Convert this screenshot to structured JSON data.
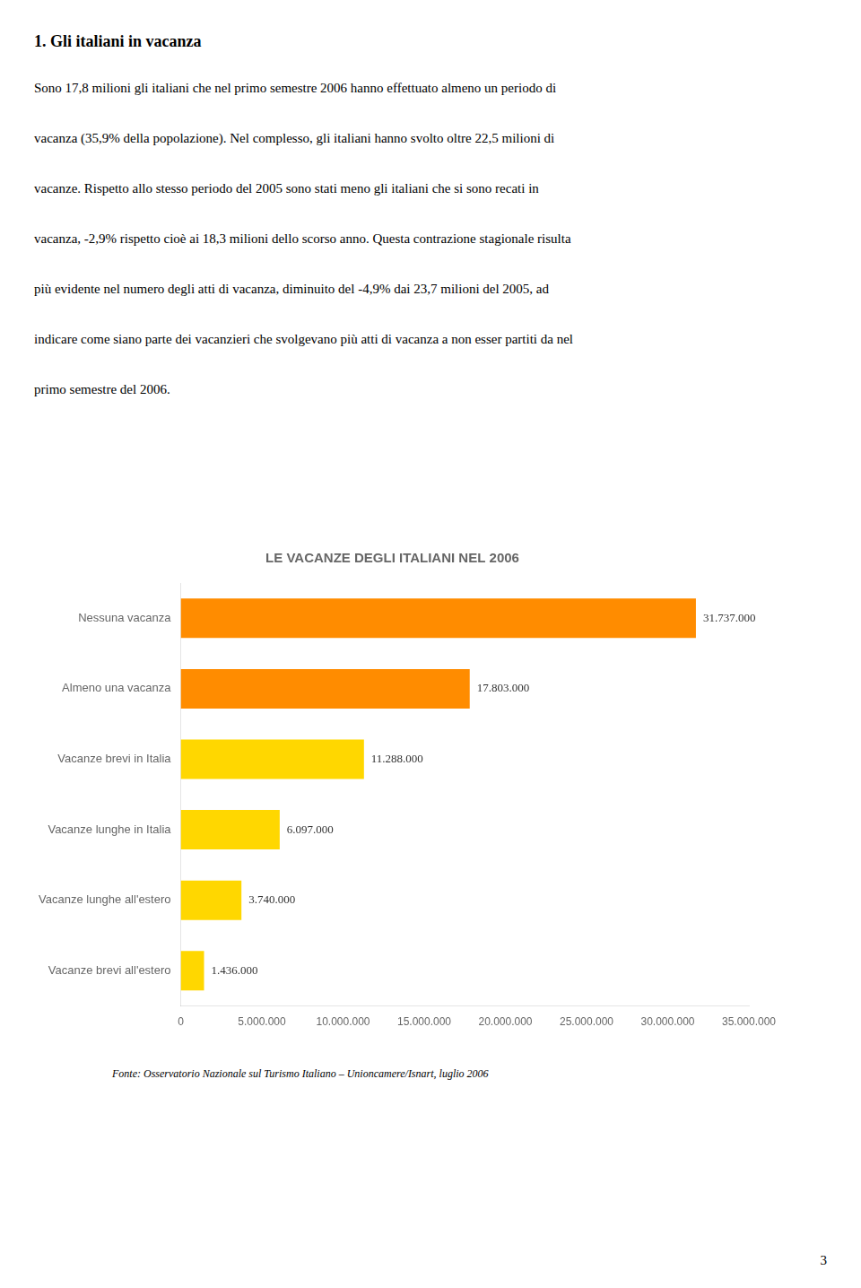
{
  "heading": "1. Gli italiani in vacanza",
  "paragraphs": [
    "Sono 17,8 milioni gli italiani che nel primo semestre 2006 hanno effettuato almeno un periodo di",
    "vacanza (35,9% della popolazione). Nel complesso, gli italiani hanno svolto oltre 22,5 milioni di",
    "vacanze. Rispetto allo stesso periodo del 2005 sono stati meno gli italiani che si sono recati in",
    "vacanza, -2,9% rispetto cioè ai 18,3 milioni dello scorso anno. Questa contrazione stagionale risulta",
    "più evidente nel numero degli atti di vacanza, diminuito del -4,9% dai 23,7 milioni del 2005, ad",
    "indicare come siano parte dei vacanzieri che svolgevano più atti di vacanza a non esser partiti da nel",
    "primo semestre del 2006."
  ],
  "footnote": "Fonte: Osservatorio Nazionale sul Turismo Italiano – Unioncamere/Isnart, luglio 2006",
  "page_number": "3",
  "chart_data": {
    "type": "bar",
    "orientation": "horizontal",
    "title": "LE VACANZE DEGLI ITALIANI NEL 2006",
    "categories": [
      "Nessuna vacanza",
      "Almeno una vacanza",
      "Vacanze brevi in Italia",
      "Vacanze lunghe in Italia",
      "Vacanze lunghe all'estero",
      "Vacanze brevi all'estero"
    ],
    "values": [
      31737000,
      17803000,
      11288000,
      6097000,
      3740000,
      1436000
    ],
    "value_labels": [
      "31.737.000",
      "17.803.000",
      "11.288.000",
      "6.097.000",
      "3.740.000",
      "1.436.000"
    ],
    "data_labels": true,
    "colors": [
      "#FF8C00",
      "#FF8C00",
      "#FFD700",
      "#FFD700",
      "#FFD700",
      "#FFD700"
    ],
    "xlim": [
      0,
      35000000
    ],
    "xticks": [
      0,
      {
        "value": 5000000,
        "label": "5.000.000"
      },
      {
        "value": 10000000,
        "label": "10.000.000"
      },
      {
        "value": 15000000,
        "label": "15.000.000"
      },
      {
        "value": 20000000,
        "label": "20.000.000"
      },
      {
        "value": 25000000,
        "label": "25.000.000"
      },
      {
        "value": 30000000,
        "label": "30.000.000"
      },
      {
        "value": 35000000,
        "label": "35.000.000"
      }
    ],
    "grid": false
  }
}
